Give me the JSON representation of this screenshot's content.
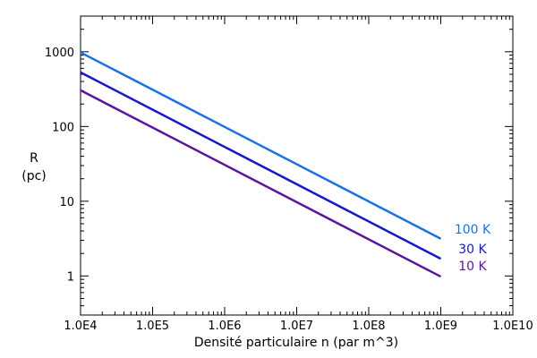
{
  "chart_data": {
    "type": "line",
    "title": "",
    "xlabel": "Densité particulaire n (par m^3)",
    "ylabel_lines": [
      "R",
      "(pc)"
    ],
    "xscale": "log",
    "yscale": "log",
    "xlim": [
      10000,
      10000000000
    ],
    "ylim": [
      0.3,
      3000
    ],
    "grid": false,
    "x_ticks": [
      {
        "value": 10000,
        "label": "1.0E4"
      },
      {
        "value": 100000,
        "label": "1.0E5"
      },
      {
        "value": 1000000,
        "label": "1.0E6"
      },
      {
        "value": 10000000,
        "label": "1.0E7"
      },
      {
        "value": 100000000,
        "label": "1.0E8"
      },
      {
        "value": 1000000000,
        "label": "1.0E9"
      },
      {
        "value": 10000000000,
        "label": "1.0E10"
      }
    ],
    "y_ticks": [
      {
        "value": 1,
        "label": "1"
      },
      {
        "value": 10,
        "label": "10"
      },
      {
        "value": 100,
        "label": "100"
      },
      {
        "value": 1000,
        "label": "1000"
      }
    ],
    "series": [
      {
        "name": "100 K",
        "color": "#1874e6",
        "x": [
          10000,
          1000000000
        ],
        "y": [
          980,
          3.15
        ]
      },
      {
        "name": "30 K",
        "color": "#1818c8",
        "x": [
          10000,
          1000000000
        ],
        "y": [
          530,
          1.7
        ]
      },
      {
        "name": "10 K",
        "color": "#5a14a0",
        "x": [
          10000,
          1000000000
        ],
        "y": [
          305,
          0.98
        ]
      }
    ]
  }
}
